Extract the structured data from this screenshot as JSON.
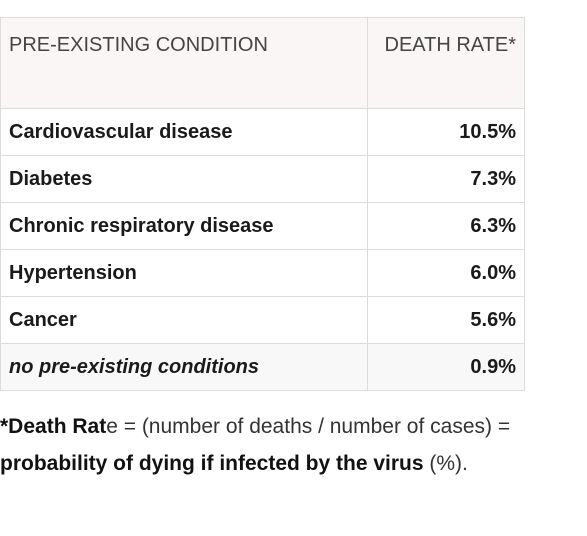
{
  "table": {
    "header": [
      "PRE-EXISTING CONDITION",
      "DEATH RATE*"
    ],
    "rows": [
      [
        "Cardiovascular disease",
        "10.5%"
      ],
      [
        "Diabetes",
        "7.3%"
      ],
      [
        "Chronic respiratory disease",
        "6.3%"
      ],
      [
        "Hypertension",
        "6.0%"
      ],
      [
        "Cancer",
        "5.6%"
      ],
      [
        "no pre-existing conditions",
        "0.9%"
      ]
    ]
  },
  "footnote": [
    "*Death Rat",
    "e = (number of deaths / number of cases) = ",
    "probability of dying if infected by the virus",
    " (%)."
  ]
}
